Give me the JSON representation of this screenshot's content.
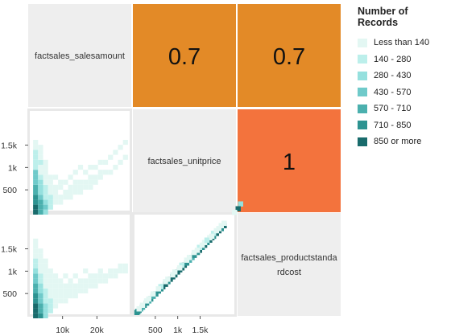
{
  "chart_data": {
    "type": "heatmap",
    "variables": [
      "factsales_salesamount",
      "factsales_unitprice",
      "factsales_productstandardcost"
    ],
    "diagonal_labels": [
      [
        "factsales_salesamount"
      ],
      [
        "factsales_unitprice"
      ],
      [
        "factsales_productstanda",
        "rdcost"
      ]
    ],
    "correlations": [
      {
        "row": 0,
        "col": 1,
        "value": 0.7,
        "label": "0.7",
        "color": "#e38a27"
      },
      {
        "row": 0,
        "col": 2,
        "value": 0.7,
        "label": "0.7",
        "color": "#e38a27"
      },
      {
        "row": 1,
        "col": 2,
        "value": 1,
        "label": "1",
        "color": "#f3733d"
      }
    ],
    "y_ticks": {
      "row1": [
        {
          "value": 1500,
          "label": "1.5k"
        },
        {
          "value": 1000,
          "label": "1k"
        },
        {
          "value": 500,
          "label": "500"
        }
      ],
      "row2": [
        {
          "value": 1500,
          "label": "1.5k"
        },
        {
          "value": 1000,
          "label": "1k"
        },
        {
          "value": 500,
          "label": "500"
        }
      ]
    },
    "x_ticks": {
      "col0": [
        {
          "value": 10000,
          "label": "10k"
        },
        {
          "value": 20000,
          "label": "20k"
        }
      ],
      "col1": [
        {
          "value": 500,
          "label": "500"
        },
        {
          "value": 1000,
          "label": "1k"
        },
        {
          "value": 1500,
          "label": "1.5k"
        }
      ]
    },
    "x_range_salesamount": [
      0,
      30000
    ],
    "range_price": [
      0,
      2300
    ],
    "legend": {
      "title": "Number of Records",
      "placement": "right",
      "bins": [
        {
          "label": "Less than 140",
          "color": "#e3f7f3"
        },
        {
          "label": "140 - 280",
          "color": "#bcefeb"
        },
        {
          "label": "280 - 430",
          "color": "#95e0de"
        },
        {
          "label": "430 - 570",
          "color": "#6fcaca"
        },
        {
          "label": "570 - 710",
          "color": "#4bb0ae"
        },
        {
          "label": "710 - 850",
          "color": "#2d9391"
        },
        {
          "label": "850 or more",
          "color": "#196b6c"
        }
      ]
    },
    "scatter_unitprice_vs_salesamount": [
      [
        1,
        0,
        6
      ],
      [
        1,
        1,
        6
      ],
      [
        1,
        2,
        5
      ],
      [
        1,
        3,
        5
      ],
      [
        1,
        4,
        4
      ],
      [
        1,
        5,
        4
      ],
      [
        1,
        6,
        3
      ],
      [
        1,
        7,
        3
      ],
      [
        1,
        8,
        3
      ],
      [
        1,
        9,
        1
      ],
      [
        1,
        10,
        1
      ],
      [
        1,
        11,
        1
      ],
      [
        1,
        12,
        1
      ],
      [
        1,
        13,
        0
      ],
      [
        1,
        14,
        0
      ],
      [
        2,
        0,
        4
      ],
      [
        2,
        1,
        4
      ],
      [
        2,
        2,
        4
      ],
      [
        2,
        3,
        3
      ],
      [
        2,
        4,
        2
      ],
      [
        2,
        5,
        2
      ],
      [
        2,
        6,
        2
      ],
      [
        2,
        7,
        1
      ],
      [
        2,
        8,
        0
      ],
      [
        2,
        9,
        0
      ],
      [
        2,
        10,
        1
      ],
      [
        2,
        11,
        0
      ],
      [
        2,
        12,
        0
      ],
      [
        2,
        13,
        0
      ],
      [
        3,
        0,
        2
      ],
      [
        3,
        1,
        3
      ],
      [
        3,
        2,
        2
      ],
      [
        3,
        3,
        1
      ],
      [
        3,
        4,
        1
      ],
      [
        3,
        5,
        1
      ],
      [
        3,
        6,
        0
      ],
      [
        3,
        7,
        0
      ],
      [
        3,
        8,
        0
      ],
      [
        3,
        9,
        0
      ],
      [
        3,
        10,
        0
      ],
      [
        4,
        1,
        1
      ],
      [
        4,
        2,
        1
      ],
      [
        4,
        3,
        1
      ],
      [
        4,
        4,
        0
      ],
      [
        4,
        5,
        0
      ],
      [
        4,
        6,
        0
      ],
      [
        4,
        7,
        0
      ],
      [
        5,
        2,
        0
      ],
      [
        5,
        3,
        0
      ],
      [
        5,
        4,
        0
      ],
      [
        5,
        5,
        0
      ],
      [
        5,
        7,
        0
      ],
      [
        6,
        2,
        0
      ],
      [
        6,
        3,
        0
      ],
      [
        6,
        5,
        0
      ],
      [
        6,
        6,
        0
      ],
      [
        7,
        3,
        0
      ],
      [
        7,
        4,
        0
      ],
      [
        7,
        6,
        0
      ],
      [
        8,
        3,
        0
      ],
      [
        8,
        4,
        0
      ],
      [
        8,
        5,
        0
      ],
      [
        8,
        7,
        0
      ],
      [
        9,
        4,
        0
      ],
      [
        9,
        5,
        0
      ],
      [
        9,
        6,
        0
      ],
      [
        9,
        8,
        0
      ],
      [
        10,
        4,
        0
      ],
      [
        10,
        5,
        0
      ],
      [
        10,
        6,
        0
      ],
      [
        10,
        9,
        0
      ],
      [
        11,
        5,
        0
      ],
      [
        11,
        6,
        0
      ],
      [
        11,
        8,
        0
      ],
      [
        12,
        5,
        0
      ],
      [
        12,
        6,
        0
      ],
      [
        12,
        7,
        0
      ],
      [
        12,
        9,
        0
      ],
      [
        13,
        6,
        0
      ],
      [
        13,
        7,
        0
      ],
      [
        13,
        9,
        0
      ],
      [
        14,
        7,
        0
      ],
      [
        14,
        8,
        0
      ],
      [
        14,
        10,
        0
      ],
      [
        15,
        8,
        0
      ],
      [
        15,
        10,
        0
      ],
      [
        16,
        8,
        0
      ],
      [
        16,
        11,
        0
      ],
      [
        17,
        9,
        0
      ],
      [
        17,
        12,
        0
      ],
      [
        18,
        10,
        0
      ],
      [
        18,
        13,
        0
      ],
      [
        19,
        11,
        0
      ],
      [
        19,
        14,
        0
      ],
      [
        20,
        12,
        0
      ],
      [
        21,
        13,
        0
      ],
      [
        22,
        13,
        0
      ],
      [
        23,
        14,
        0
      ],
      [
        24,
        15,
        0
      ],
      [
        26,
        17,
        0
      ],
      [
        28,
        19,
        0
      ],
      [
        30,
        21,
        0
      ],
      [
        32,
        18,
        0
      ],
      [
        34,
        16,
        0
      ],
      [
        36,
        19,
        0
      ],
      [
        38,
        20,
        0
      ],
      [
        42,
        22,
        0
      ],
      [
        46,
        24,
        0
      ],
      [
        52,
        26,
        0
      ],
      [
        58,
        28,
        0
      ],
      [
        64,
        30,
        0
      ]
    ],
    "scatter_cost_vs_salesamount": [
      [
        1,
        0,
        6
      ],
      [
        1,
        1,
        6
      ],
      [
        1,
        2,
        6
      ],
      [
        1,
        3,
        5
      ],
      [
        1,
        4,
        5
      ],
      [
        1,
        5,
        4
      ],
      [
        1,
        6,
        4
      ],
      [
        1,
        7,
        3
      ],
      [
        1,
        8,
        3
      ],
      [
        1,
        9,
        2
      ],
      [
        1,
        10,
        1
      ],
      [
        1,
        11,
        1
      ],
      [
        1,
        12,
        0
      ],
      [
        1,
        13,
        0
      ],
      [
        1,
        14,
        0
      ],
      [
        1,
        15,
        0
      ],
      [
        2,
        0,
        5
      ],
      [
        2,
        1,
        4
      ],
      [
        2,
        2,
        4
      ],
      [
        2,
        3,
        3
      ],
      [
        2,
        4,
        3
      ],
      [
        2,
        5,
        2
      ],
      [
        2,
        6,
        2
      ],
      [
        2,
        7,
        1
      ],
      [
        2,
        8,
        1
      ],
      [
        2,
        9,
        0
      ],
      [
        2,
        10,
        0
      ],
      [
        2,
        11,
        0
      ],
      [
        2,
        12,
        0
      ],
      [
        2,
        13,
        0
      ],
      [
        3,
        0,
        2
      ],
      [
        3,
        1,
        2
      ],
      [
        3,
        2,
        2
      ],
      [
        3,
        3,
        1
      ],
      [
        3,
        4,
        1
      ],
      [
        3,
        5,
        1
      ],
      [
        3,
        6,
        0
      ],
      [
        3,
        7,
        0
      ],
      [
        3,
        8,
        0
      ],
      [
        3,
        9,
        0
      ],
      [
        3,
        10,
        0
      ],
      [
        3,
        11,
        0
      ],
      [
        4,
        1,
        1
      ],
      [
        4,
        2,
        1
      ],
      [
        4,
        3,
        1
      ],
      [
        4,
        4,
        0
      ],
      [
        4,
        5,
        0
      ],
      [
        4,
        6,
        0
      ],
      [
        4,
        7,
        0
      ],
      [
        4,
        8,
        0
      ],
      [
        4,
        9,
        0
      ],
      [
        5,
        2,
        0
      ],
      [
        5,
        3,
        0
      ],
      [
        5,
        4,
        0
      ],
      [
        5,
        5,
        0
      ],
      [
        5,
        6,
        0
      ],
      [
        5,
        7,
        0
      ],
      [
        5,
        8,
        0
      ],
      [
        6,
        3,
        0
      ],
      [
        6,
        4,
        0
      ],
      [
        6,
        5,
        0
      ],
      [
        6,
        6,
        0
      ],
      [
        6,
        7,
        0
      ],
      [
        7,
        3,
        0
      ],
      [
        7,
        4,
        0
      ],
      [
        7,
        5,
        0
      ],
      [
        7,
        6,
        0
      ],
      [
        7,
        8,
        0
      ],
      [
        8,
        4,
        0
      ],
      [
        8,
        5,
        0
      ],
      [
        8,
        6,
        0
      ],
      [
        8,
        7,
        0
      ],
      [
        9,
        4,
        0
      ],
      [
        9,
        5,
        0
      ],
      [
        9,
        6,
        0
      ],
      [
        9,
        8,
        0
      ],
      [
        10,
        5,
        0
      ],
      [
        10,
        6,
        0
      ],
      [
        10,
        7,
        0
      ],
      [
        11,
        5,
        0
      ],
      [
        11,
        6,
        0
      ],
      [
        11,
        7,
        0
      ],
      [
        11,
        9,
        0
      ],
      [
        12,
        6,
        0
      ],
      [
        12,
        7,
        0
      ],
      [
        12,
        8,
        0
      ],
      [
        13,
        6,
        0
      ],
      [
        13,
        7,
        0
      ],
      [
        13,
        8,
        0
      ],
      [
        14,
        7,
        0
      ],
      [
        14,
        8,
        0
      ],
      [
        14,
        9,
        0
      ],
      [
        15,
        7,
        0
      ],
      [
        15,
        8,
        0
      ],
      [
        16,
        8,
        0
      ],
      [
        16,
        9,
        0
      ],
      [
        17,
        8,
        0
      ],
      [
        17,
        9,
        0
      ],
      [
        18,
        9,
        0
      ],
      [
        18,
        10,
        0
      ],
      [
        19,
        9,
        0
      ],
      [
        19,
        10,
        0
      ],
      [
        20,
        10,
        0
      ],
      [
        21,
        10,
        0
      ]
    ],
    "scatter_cost_vs_unitprice": [
      [
        0.6,
        0.5,
        5
      ],
      [
        1.0,
        0.9,
        5
      ],
      [
        1.5,
        1.4,
        5
      ],
      [
        2.1,
        2.0,
        4
      ],
      [
        2.9,
        2.7,
        4
      ],
      [
        3.6,
        3.5,
        5
      ],
      [
        4.6,
        4.4,
        5
      ],
      [
        5.5,
        5.3,
        4
      ],
      [
        6.3,
        6.1,
        5
      ],
      [
        7.3,
        7.2,
        4
      ],
      [
        8.4,
        8.2,
        5
      ],
      [
        9.5,
        9.4,
        5
      ],
      [
        10.5,
        10.3,
        5
      ],
      [
        11.3,
        11.2,
        6
      ],
      [
        12.4,
        12.2,
        6
      ],
      [
        13.4,
        13.3,
        5
      ],
      [
        14.4,
        14.3,
        6
      ],
      [
        15.4,
        15.3,
        6
      ],
      [
        16.3,
        16.1,
        6
      ],
      [
        17.4,
        17.3,
        6
      ],
      [
        18.3,
        18.2,
        6
      ],
      [
        19.2,
        19.0,
        6
      ],
      [
        20.2,
        20.1,
        6
      ],
      [
        21.2,
        21.0,
        5
      ],
      [
        22.3,
        22.2,
        4
      ],
      [
        23.4,
        23.3,
        4
      ],
      [
        24.3,
        24.2,
        5
      ],
      [
        25.6,
        25.4,
        5
      ],
      [
        26.5,
        26.3,
        6
      ],
      [
        27.6,
        27.5,
        5
      ],
      [
        28.6,
        28.4,
        6
      ],
      [
        29.6,
        29.5,
        5
      ],
      [
        30.7,
        30.5,
        6
      ],
      [
        31.6,
        31.5,
        6
      ],
      [
        32.3,
        32.1,
        5
      ],
      [
        33.5,
        33.3,
        6
      ],
      [
        34.5,
        34.4,
        6
      ],
      [
        35.5,
        35.3,
        5
      ],
      [
        36.7,
        36.5,
        6
      ],
      [
        2.9,
        3.5,
        0
      ],
      [
        4.6,
        5.3,
        0
      ],
      [
        7.3,
        8.2,
        0
      ],
      [
        10.5,
        11.2,
        1
      ],
      [
        13.4,
        14.3,
        0
      ],
      [
        16.3,
        17.3,
        0
      ],
      [
        19.2,
        20.1,
        1
      ],
      [
        22.3,
        23.3,
        0
      ],
      [
        24.3,
        25.4,
        0
      ],
      [
        26.5,
        27.5,
        1
      ],
      [
        28.6,
        29.5,
        0
      ],
      [
        30.7,
        31.5,
        0
      ],
      [
        32.3,
        33.3,
        1
      ],
      [
        34.5,
        35.3,
        0
      ],
      [
        36.7,
        37.5,
        0
      ],
      [
        1.5,
        2.0,
        0
      ],
      [
        5.5,
        6.1,
        0
      ],
      [
        9.5,
        10.3,
        0
      ],
      [
        12.4,
        13.3,
        0
      ],
      [
        15.4,
        16.1,
        0
      ],
      [
        18.3,
        19.0,
        0
      ],
      [
        21.2,
        22.2,
        0
      ],
      [
        25.6,
        26.3,
        0
      ],
      [
        27.6,
        28.4,
        0
      ],
      [
        29.6,
        30.5,
        1
      ],
      [
        31.6,
        32.1,
        0
      ],
      [
        33.5,
        34.4,
        0
      ],
      [
        35.5,
        36.5,
        0
      ],
      [
        43.5,
        45.5,
        2
      ],
      [
        42.5,
        43.5,
        6
      ],
      [
        41.0,
        42.0,
        0
      ]
    ]
  }
}
